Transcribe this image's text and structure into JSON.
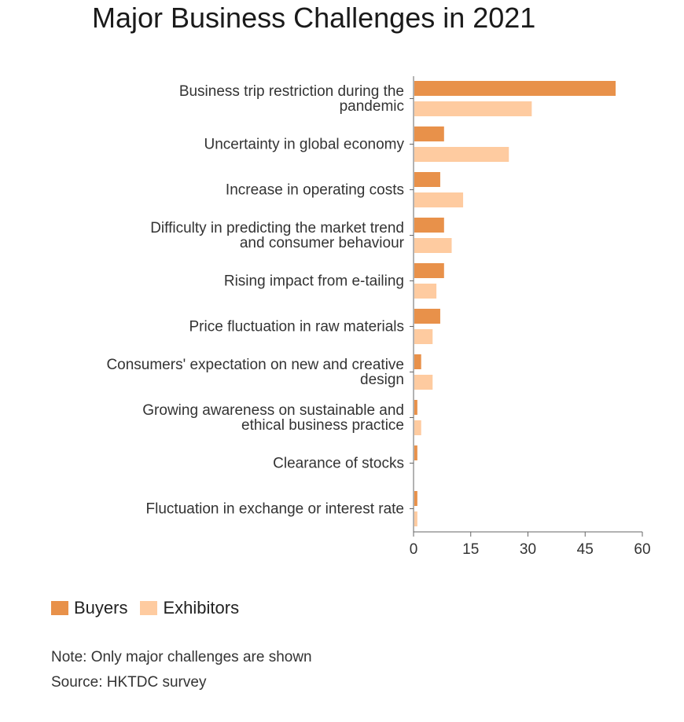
{
  "chart_data": {
    "type": "bar",
    "orientation": "horizontal",
    "title": "Major Business Challenges in 2021",
    "categories": [
      [
        "Business trip restriction during the",
        "pandemic"
      ],
      [
        "Uncertainty in global economy"
      ],
      [
        "Increase in operating costs"
      ],
      [
        "Difficulty in predicting the market trend",
        "and consumer behaviour"
      ],
      [
        "Rising impact from e-tailing"
      ],
      [
        "Price fluctuation in raw materials"
      ],
      [
        "Consumers' expectation on new and creative",
        "design"
      ],
      [
        "Growing awareness on sustainable and",
        "ethical business practice"
      ],
      [
        "Clearance of stocks"
      ],
      [
        "Fluctuation in exchange or interest rate"
      ]
    ],
    "series": [
      {
        "name": "Buyers",
        "color": "#e8914a",
        "values": [
          53,
          8,
          7,
          8,
          8,
          7,
          2,
          1,
          1,
          1
        ]
      },
      {
        "name": "Exhibitors",
        "color": "#fecba0",
        "values": [
          31,
          25,
          13,
          10,
          6,
          5,
          5,
          2,
          0,
          1
        ]
      }
    ],
    "xlim": [
      0,
      60
    ],
    "xticks": [
      0,
      15,
      30,
      45,
      60
    ],
    "grid": false,
    "legend_position": "bottom-left"
  },
  "legend": {
    "buyers_label": "Buyers",
    "exhibitors_label": "Exhibitors",
    "buyers_color": "#e8914a",
    "exhibitors_color": "#fecba0"
  },
  "note": "Note: Only major challenges are shown",
  "source": "Source: HKTDC survey"
}
